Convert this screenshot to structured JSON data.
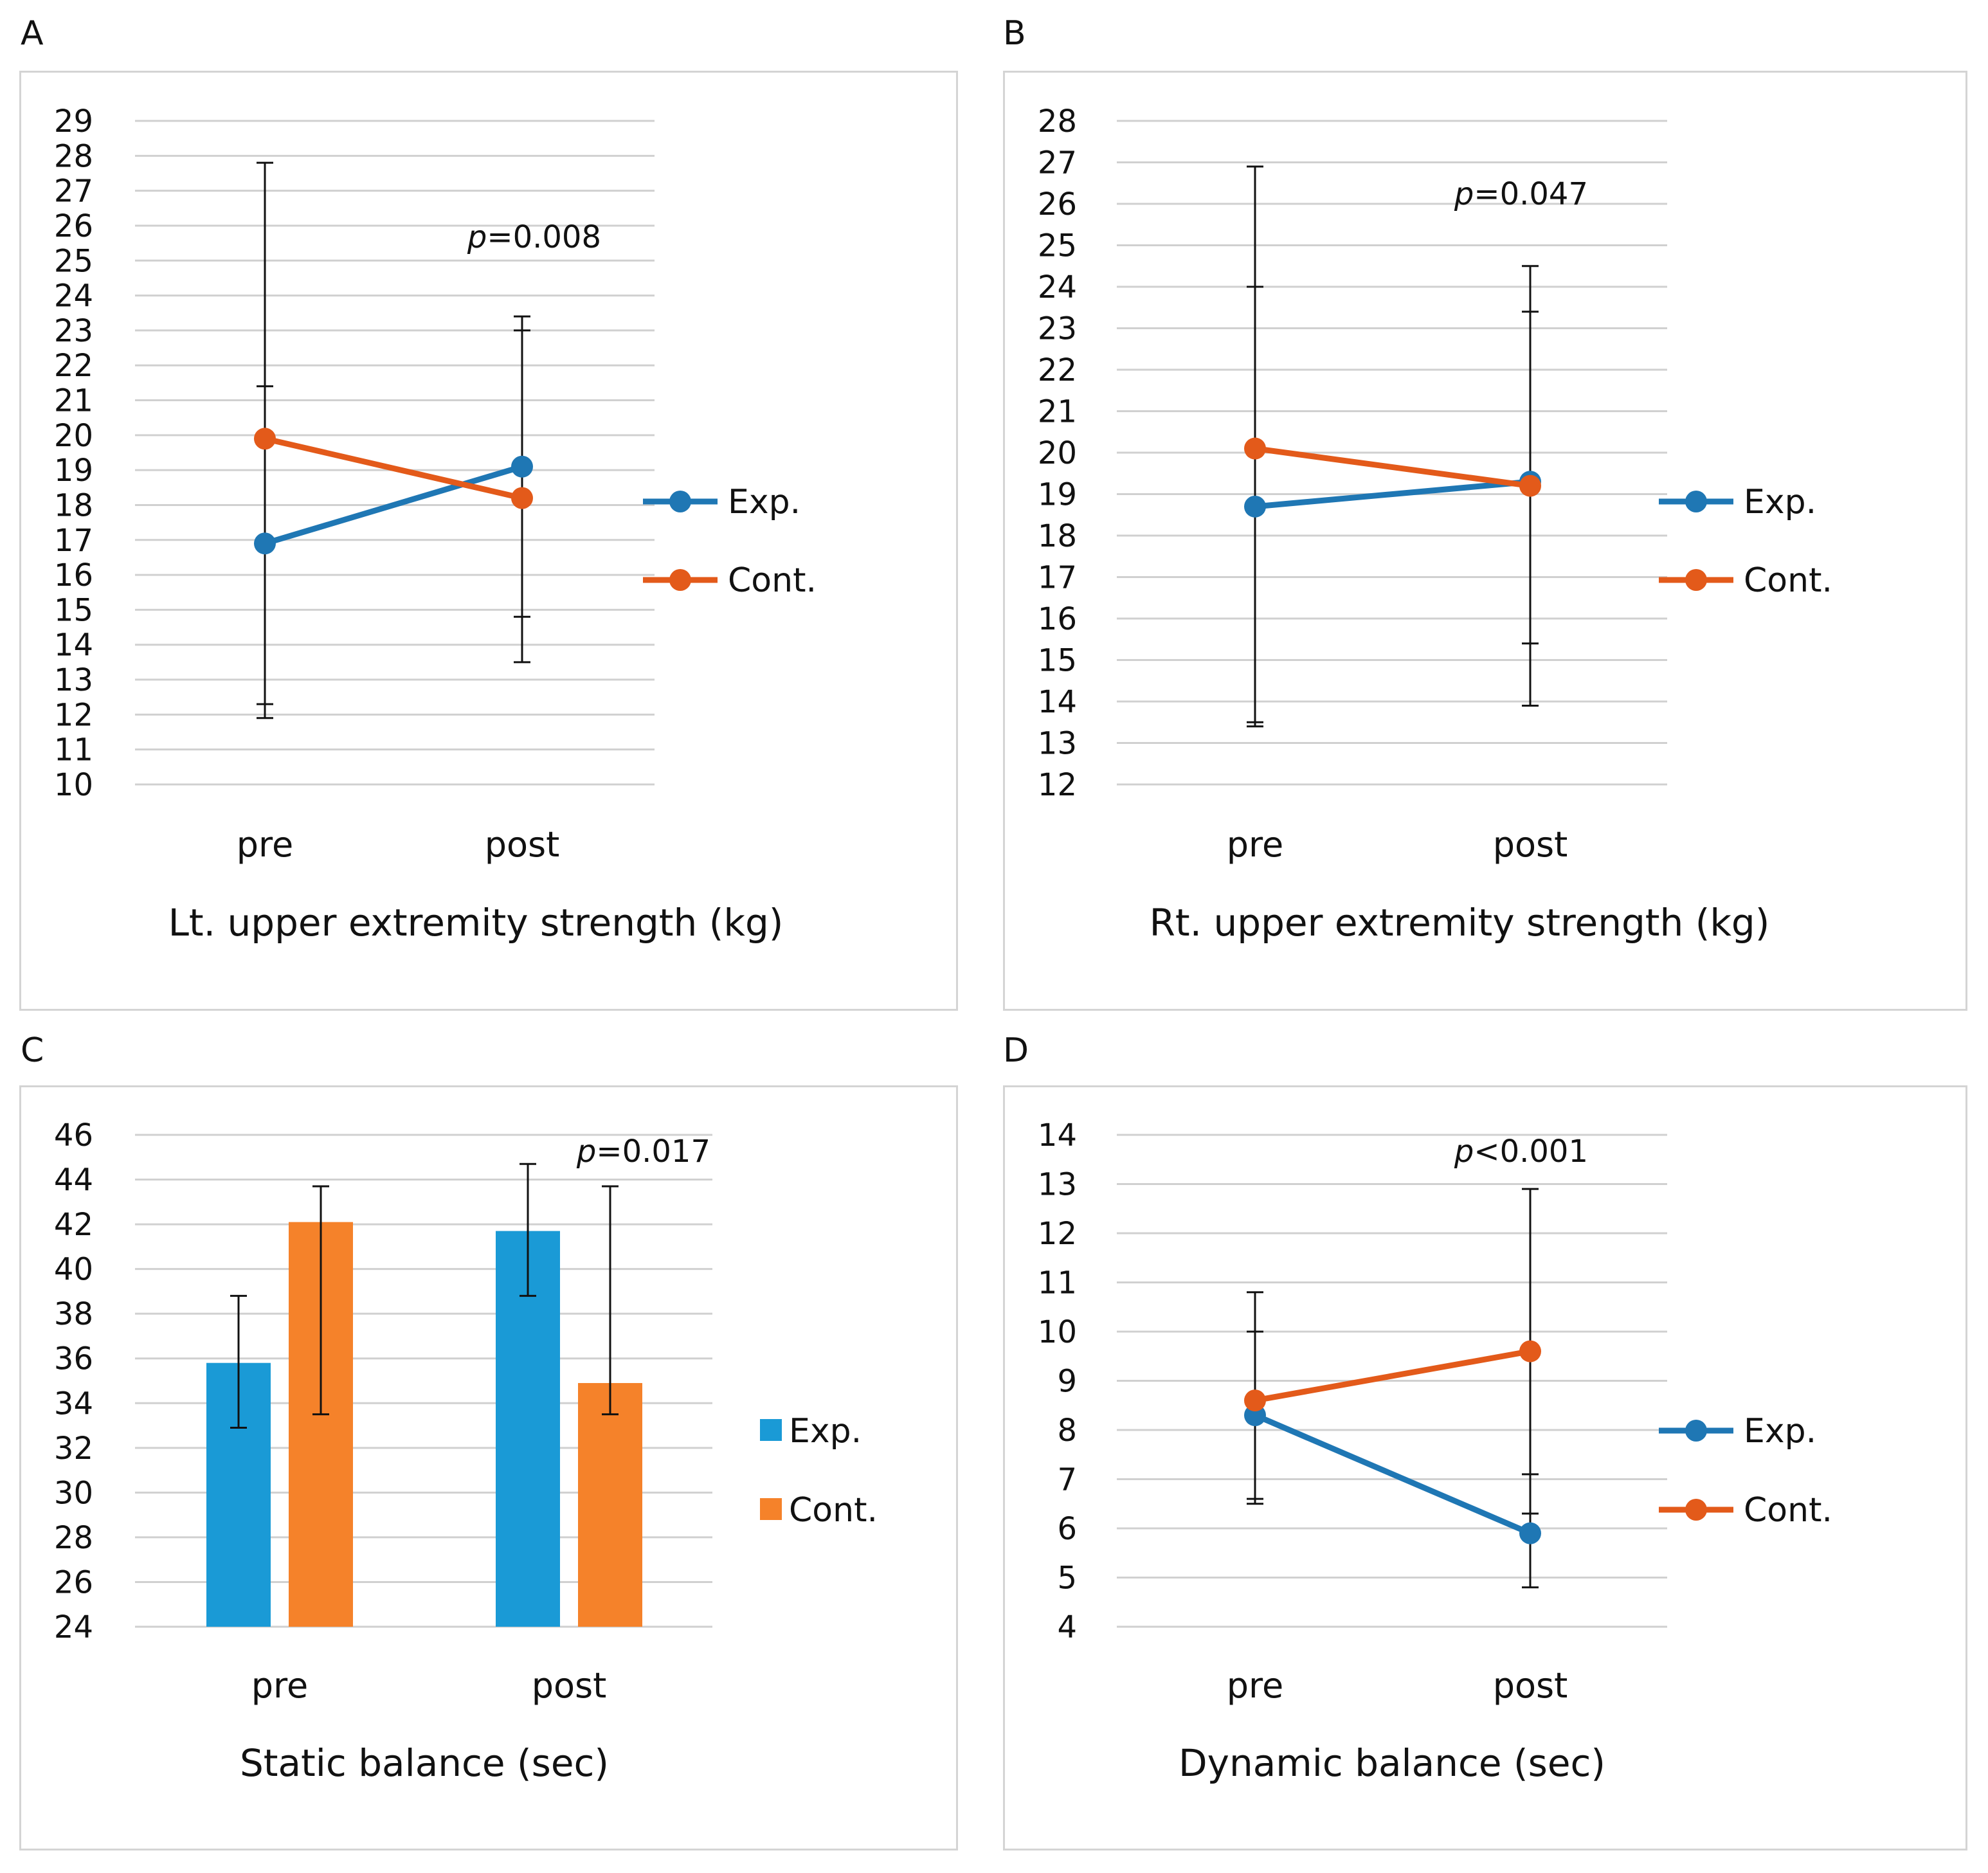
{
  "colors": {
    "exp": "#1f77b4",
    "exp_bar": "#1a9ad6",
    "cont": "#e35a1a",
    "cont_bar": "#f5822a",
    "grid": "#d0d0d0",
    "error": "#111111"
  },
  "chart_data": [
    {
      "panel": "A",
      "type": "line",
      "xlabel": "Lt. upper extremity strength (kg)",
      "categories": [
        "pre",
        "post"
      ],
      "ylim": [
        10,
        29
      ],
      "yticks": [
        10,
        11,
        12,
        13,
        14,
        15,
        16,
        17,
        18,
        19,
        20,
        21,
        22,
        23,
        24,
        25,
        26,
        27,
        28,
        29
      ],
      "annotation": {
        "italic": "p",
        "text": "=0.008"
      },
      "legend": [
        "Exp.",
        "Cont."
      ],
      "series": [
        {
          "name": "Exp.",
          "values": [
            16.9,
            19.1
          ],
          "err_low": [
            12.3,
            14.8
          ],
          "err_high": [
            21.4,
            23.4
          ]
        },
        {
          "name": "Cont.",
          "values": [
            19.9,
            18.2
          ],
          "err_low": [
            11.9,
            13.5
          ],
          "err_high": [
            27.8,
            23.0
          ]
        }
      ]
    },
    {
      "panel": "B",
      "type": "line",
      "xlabel": "Rt. upper extremity strength (kg)",
      "categories": [
        "pre",
        "post"
      ],
      "ylim": [
        12,
        28
      ],
      "yticks": [
        12,
        13,
        14,
        15,
        16,
        17,
        18,
        19,
        20,
        21,
        22,
        23,
        24,
        25,
        26,
        27,
        28
      ],
      "annotation": {
        "italic": "p",
        "text": "=0.047"
      },
      "legend": [
        "Exp.",
        "Cont."
      ],
      "series": [
        {
          "name": "Exp.",
          "values": [
            18.7,
            19.3
          ],
          "err_low": [
            13.4,
            13.9
          ],
          "err_high": [
            24.0,
            24.5
          ]
        },
        {
          "name": "Cont.",
          "values": [
            20.1,
            19.2
          ],
          "err_low": [
            13.5,
            15.4
          ],
          "err_high": [
            26.9,
            23.4
          ]
        }
      ]
    },
    {
      "panel": "C",
      "type": "bar",
      "xlabel": "Static balance (sec)",
      "categories": [
        "pre",
        "post"
      ],
      "ylim": [
        24,
        46
      ],
      "yticks": [
        24,
        26,
        28,
        30,
        32,
        34,
        36,
        38,
        40,
        42,
        44,
        46
      ],
      "annotation": {
        "italic": "p",
        "text": "=0.017"
      },
      "legend": [
        "Exp.",
        "Cont."
      ],
      "series": [
        {
          "name": "Exp.",
          "values": [
            35.8,
            41.7
          ],
          "err_low": [
            32.9,
            38.8
          ],
          "err_high": [
            38.8,
            44.7
          ]
        },
        {
          "name": "Cont.",
          "values": [
            42.1,
            34.9
          ],
          "err_low": [
            33.5,
            33.5
          ],
          "err_high": [
            43.7,
            43.7
          ]
        }
      ]
    },
    {
      "panel": "D",
      "type": "line",
      "xlabel": "Dynamic balance (sec)",
      "categories": [
        "pre",
        "post"
      ],
      "ylim": [
        4,
        14
      ],
      "yticks": [
        4,
        5,
        6,
        7,
        8,
        9,
        10,
        11,
        12,
        13,
        14
      ],
      "annotation": {
        "italic": "p",
        "text": "<0.001"
      },
      "legend": [
        "Exp.",
        "Cont."
      ],
      "series": [
        {
          "name": "Exp.",
          "values": [
            8.3,
            5.9
          ],
          "err_low": [
            6.6,
            4.8
          ],
          "err_high": [
            10.0,
            7.1
          ]
        },
        {
          "name": "Cont.",
          "values": [
            8.6,
            9.6
          ],
          "err_low": [
            6.5,
            6.3
          ],
          "err_high": [
            10.8,
            12.9
          ]
        }
      ]
    }
  ]
}
